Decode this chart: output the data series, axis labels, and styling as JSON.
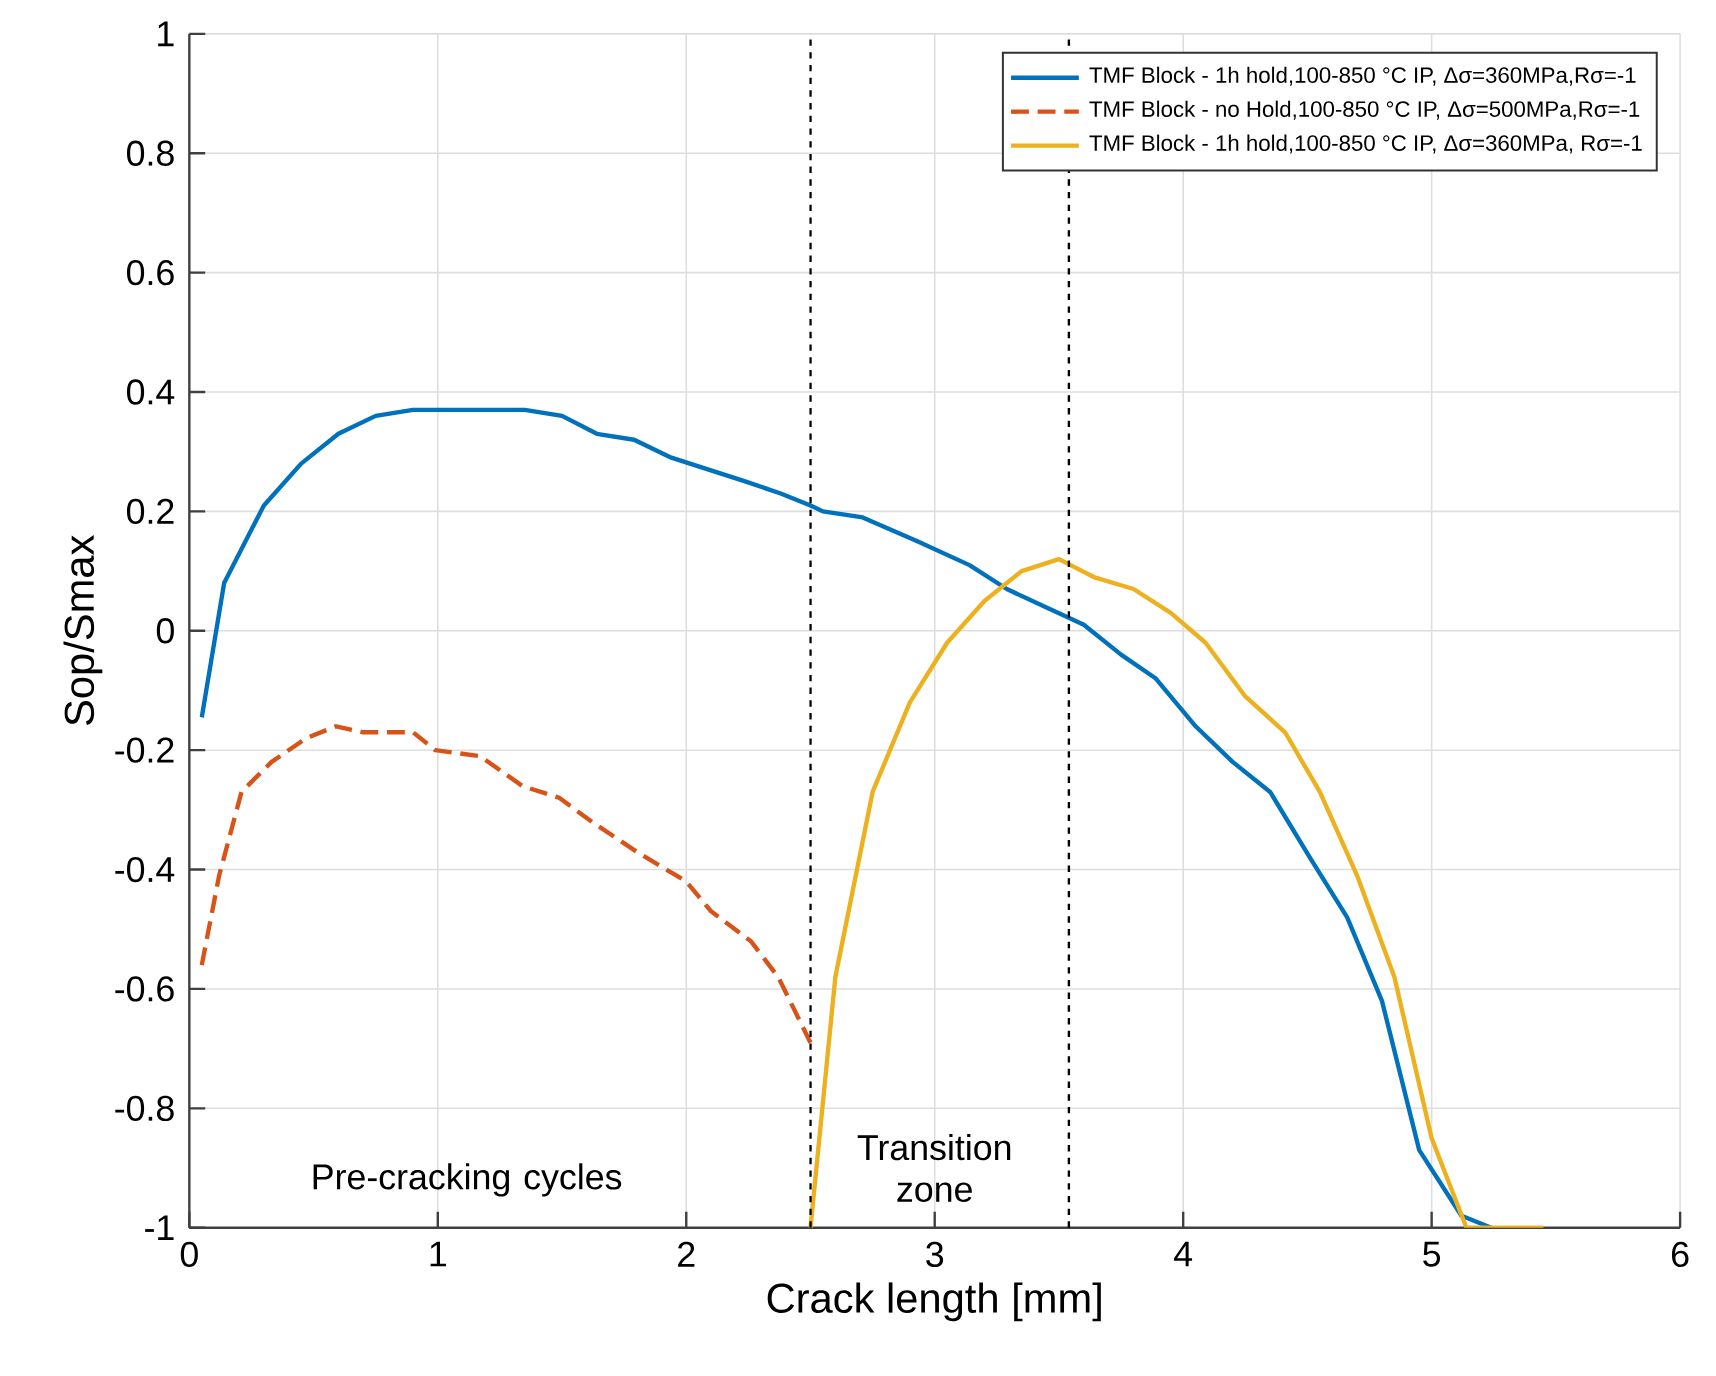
{
  "chart_data": {
    "type": "line",
    "xlabel": "Crack length [mm]",
    "ylabel": "Sop/Smax",
    "xlim": [
      0,
      6
    ],
    "ylim": [
      -1,
      1
    ],
    "xticks": [
      0,
      1,
      2,
      3,
      4,
      5,
      6
    ],
    "yticks": [
      -1,
      -0.8,
      -0.6,
      -0.4,
      -0.2,
      0,
      0.2,
      0.4,
      0.6,
      0.8,
      1
    ],
    "grid": true,
    "legend": "top right",
    "series": [
      {
        "name": "TMF Block - 1h hold,100-850 °C IP, Δσ=360MPa,Rσ=-1",
        "color": "#0072bd",
        "line_style": "solid",
        "x": [
          0.05,
          0.14,
          0.3,
          0.45,
          0.6,
          0.75,
          0.9,
          1.35,
          1.5,
          1.64,
          1.79,
          1.94,
          2.09,
          2.24,
          2.38,
          2.5,
          2.55,
          2.71,
          2.93,
          3.14,
          3.29,
          3.6,
          3.75,
          3.89,
          4.05,
          4.2,
          4.35,
          4.51,
          4.66,
          4.8,
          4.95,
          5.12,
          5.24
        ],
        "values": [
          -0.145,
          0.08,
          0.21,
          0.28,
          0.33,
          0.36,
          0.37,
          0.37,
          0.36,
          0.33,
          0.32,
          0.29,
          0.27,
          0.25,
          0.23,
          0.21,
          0.2,
          0.19,
          0.15,
          0.11,
          0.07,
          0.01,
          -0.04,
          -0.08,
          -0.16,
          -0.22,
          -0.27,
          -0.38,
          -0.48,
          -0.62,
          -0.87,
          -0.98,
          -1.0
        ]
      },
      {
        "name": "TMF Block - no Hold,100-850 °C IP, Δσ=500MPa,Rσ=-1",
        "color": "#d95319",
        "line_style": "dashed",
        "x": [
          0.05,
          0.12,
          0.21,
          0.33,
          0.47,
          0.59,
          0.7,
          0.9,
          0.99,
          1.17,
          1.34,
          1.49,
          1.62,
          1.8,
          2.0,
          2.1,
          2.26,
          2.37,
          2.5
        ],
        "values": [
          -0.56,
          -0.41,
          -0.27,
          -0.22,
          -0.18,
          -0.16,
          -0.17,
          -0.17,
          -0.2,
          -0.21,
          -0.26,
          -0.28,
          -0.32,
          -0.37,
          -0.42,
          -0.47,
          -0.52,
          -0.58,
          -0.69
        ]
      },
      {
        "name": "TMF Block - 1h hold,100-850 °C IP, Δσ=360MPa, Rσ=-1",
        "color": "#edb120",
        "line_style": "solid",
        "x": [
          2.5,
          2.6,
          2.75,
          2.9,
          3.05,
          3.2,
          3.35,
          3.5,
          3.64,
          3.8,
          3.95,
          4.09,
          4.25,
          4.41,
          4.55,
          4.7,
          4.85,
          5.0,
          5.14,
          5.45
        ],
        "values": [
          -1.0,
          -0.58,
          -0.27,
          -0.12,
          -0.02,
          0.05,
          0.1,
          0.12,
          0.09,
          0.07,
          0.03,
          -0.02,
          -0.11,
          -0.17,
          -0.27,
          -0.41,
          -0.58,
          -0.85,
          -1.0,
          -1.0
        ]
      }
    ],
    "ref_lines": [
      {
        "axis": "x",
        "value": 2.5,
        "color": "#000000",
        "line_style": "dotted"
      },
      {
        "axis": "x",
        "value": 3.54,
        "color": "#000000",
        "line_style": "dotted"
      }
    ],
    "annotations": [
      "Pre-cracking cycles",
      "Transition zone"
    ]
  }
}
